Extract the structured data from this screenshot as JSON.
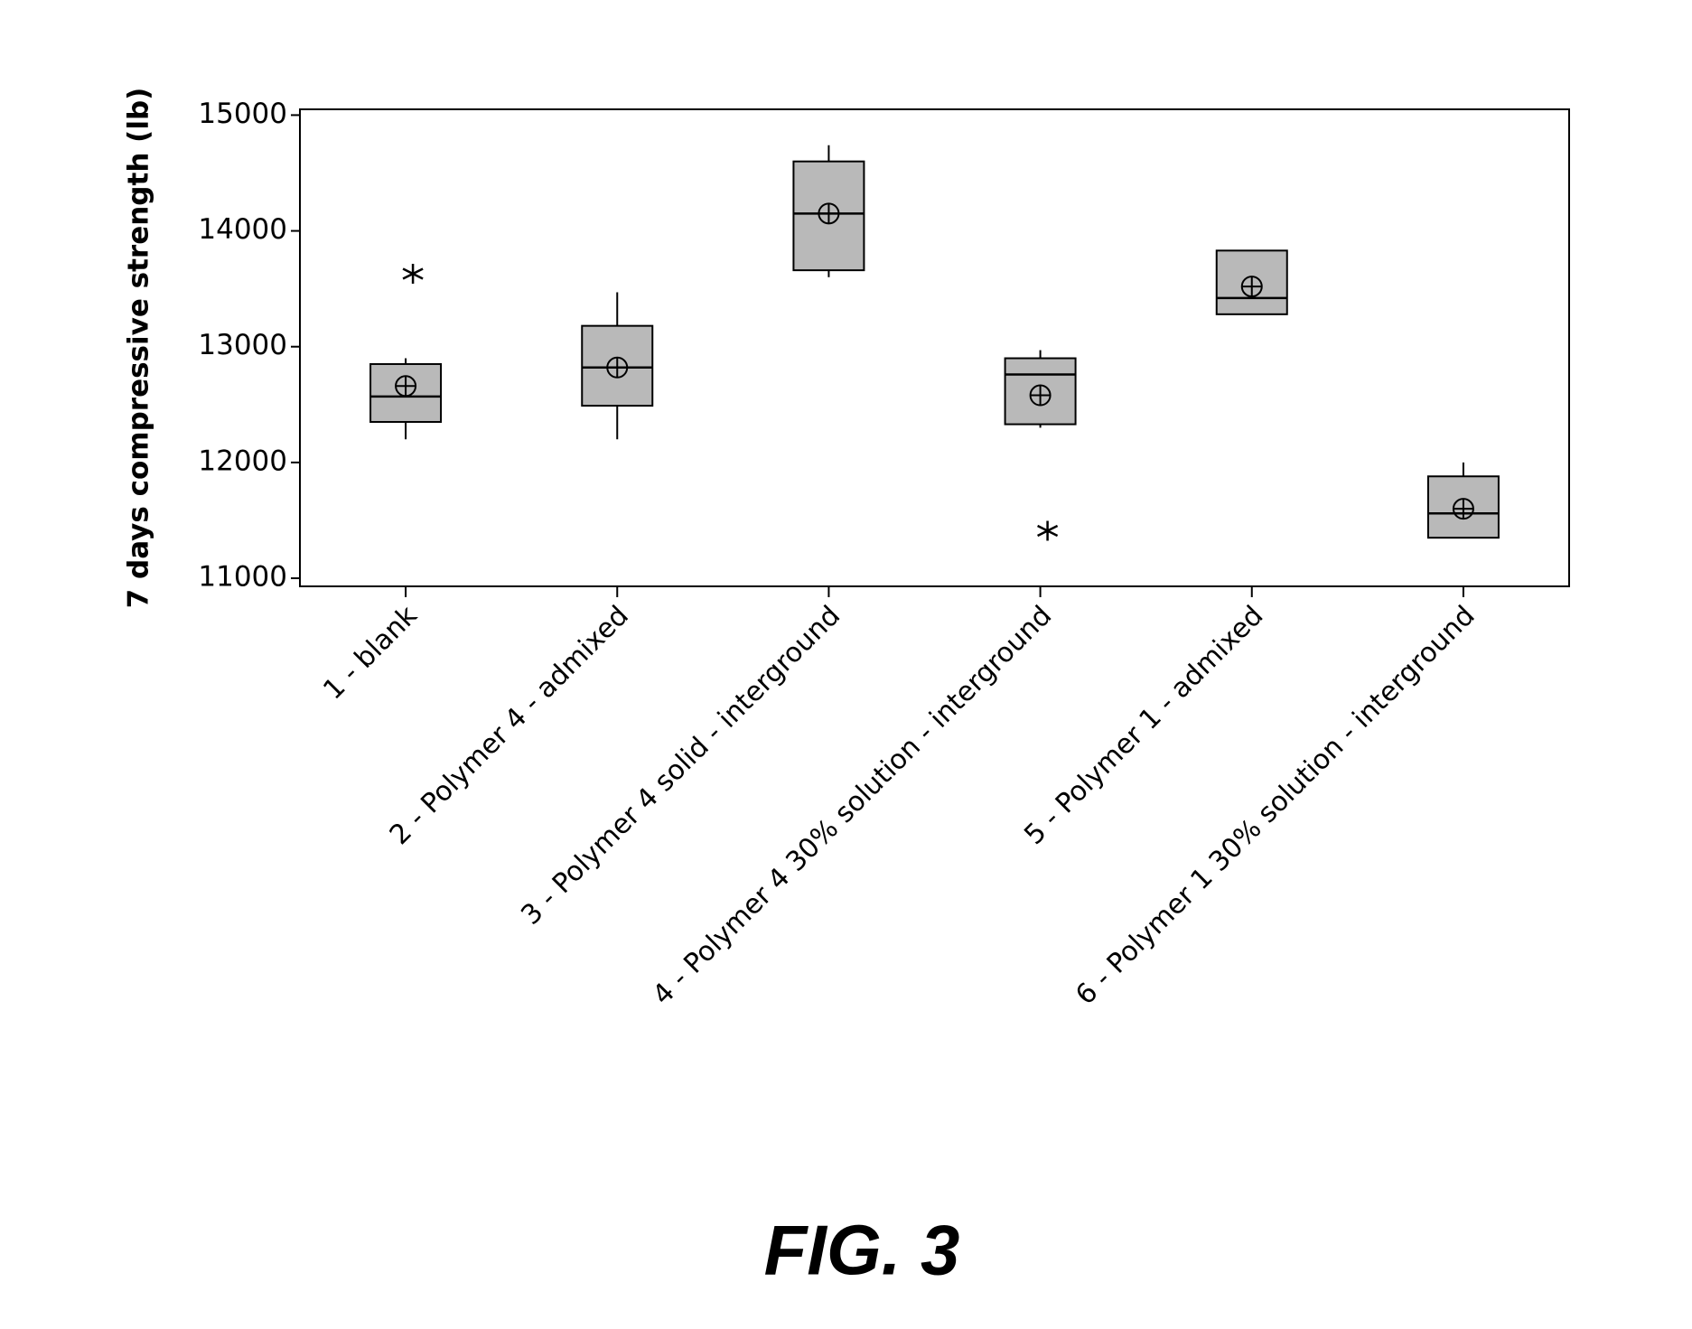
{
  "chart_data": {
    "type": "box",
    "y_label": "7 days compressive strength (lb)",
    "caption": "FIG. 3",
    "categories": [
      "1 - blank",
      "2 - Polymer 4 - admixed",
      "3 - Polymer 4  solid -  interground",
      "4 - Polymer 4 30% solution - interground",
      "5 - Polymer 1 - admixed",
      "6 - Polymer 1 30% solution - interground"
    ],
    "boxes": [
      {
        "min": 12200,
        "q1": 12350,
        "median": 12570,
        "q3": 12850,
        "max": 12900,
        "mean": 12660,
        "outliers": [
          13630
        ]
      },
      {
        "min": 12200,
        "q1": 12490,
        "median": 12820,
        "q3": 13180,
        "max": 13470,
        "mean": 12820,
        "outliers": []
      },
      {
        "min": 13600,
        "q1": 13660,
        "median": 14150,
        "q3": 14600,
        "max": 14740,
        "mean": 14150,
        "outliers": []
      },
      {
        "min": 12300,
        "q1": 12330,
        "median": 12760,
        "q3": 12900,
        "max": 12970,
        "mean": 12580,
        "outliers": [
          11410
        ]
      },
      {
        "min": 13280,
        "q1": 13280,
        "median": 13420,
        "q3": 13830,
        "max": 13830,
        "mean": 13520,
        "outliers": []
      },
      {
        "min": 11350,
        "q1": 11350,
        "median": 11560,
        "q3": 11880,
        "max": 12000,
        "mean": 11600,
        "outliers": []
      }
    ],
    "color": "#b9b9b9",
    "ylim": [
      10930,
      15050
    ],
    "yticks": [
      11000,
      12000,
      13000,
      14000,
      15000
    ],
    "grid": false
  }
}
